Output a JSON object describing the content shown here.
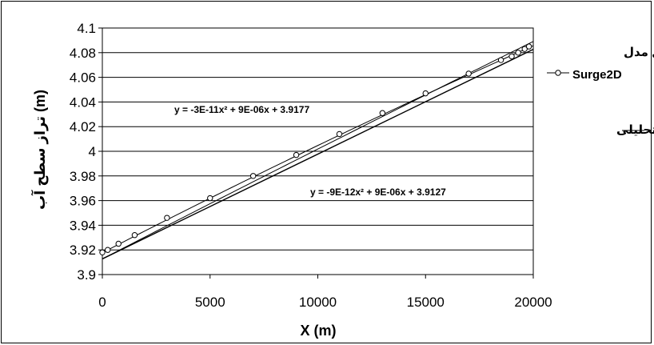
{
  "chart_data": {
    "type": "scatter",
    "title": "",
    "xlabel": "X (m)",
    "ylabel": "(m) تراز سطح آب",
    "xlim": [
      0,
      20000
    ],
    "ylim": [
      3.9,
      4.1
    ],
    "x_ticks": [
      "0",
      "5000",
      "10000",
      "15000",
      "20000"
    ],
    "y_ticks": [
      "3.9",
      "3.92",
      "3.94",
      "3.96",
      "3.98",
      "4",
      "4.02",
      "4.04",
      "4.06",
      "4.08",
      "4.1"
    ],
    "grid": "horizontal",
    "legend_position": "right",
    "series": [
      {
        "name_line1": "حل مدل",
        "name_line2": "Surge2D",
        "style": "line-with-circle-markers",
        "x": [
          0,
          250,
          750,
          1500,
          3000,
          5000,
          7000,
          9000,
          11000,
          13000,
          15000,
          17000,
          18500,
          19000,
          19300,
          19600,
          19800
        ],
        "y": [
          3.918,
          3.92,
          3.925,
          3.932,
          3.946,
          3.962,
          3.98,
          3.997,
          4.014,
          4.031,
          4.047,
          4.063,
          4.074,
          4.077,
          4.08,
          4.083,
          4.085
        ]
      },
      {
        "name": "حل تحليلى",
        "style": "line",
        "x": [
          0,
          20000
        ],
        "y": [
          3.9127,
          4.0827
        ]
      }
    ],
    "trendlines": [
      {
        "equation": "y = -3E-11x² + 9E-06x + 3.9177",
        "a": -3e-11,
        "b": 9e-06,
        "c": 3.9177
      },
      {
        "equation": "y = -9E-12x² + 9E-06x + 3.9127",
        "a": -9e-12,
        "b": 9e-06,
        "c": 3.9127
      }
    ]
  }
}
